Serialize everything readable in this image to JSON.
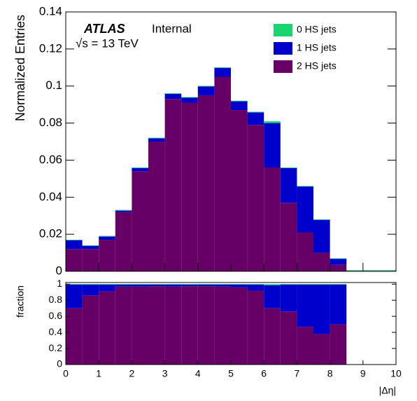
{
  "chart_data": [
    {
      "type": "histogram",
      "ylabel": "Normalized Entries",
      "annotations": [
        "ATLAS",
        "Internal",
        "√s = 13 TeV"
      ],
      "bins": [
        0,
        0.5,
        1,
        1.5,
        2,
        2.5,
        3,
        3.5,
        4,
        4.5,
        5,
        5.5,
        6,
        6.5,
        7,
        7.5,
        8,
        8.5,
        9,
        9.5,
        10
      ],
      "series": [
        {
          "name": "0 HS jets",
          "color": "#19d46f",
          "values": [
            0,
            0,
            0,
            0,
            0,
            0,
            0,
            0,
            0,
            0,
            0,
            0,
            0.001,
            0,
            0,
            0,
            0,
            0,
            0,
            0
          ]
        },
        {
          "name": "1 HS jets",
          "color": "#0000cc",
          "values": [
            0.005,
            0.002,
            0.002,
            0.001,
            0.002,
            0.002,
            0.003,
            0.003,
            0.005,
            0.005,
            0.005,
            0.007,
            0.024,
            0.019,
            0.025,
            0.018,
            0.0035,
            0,
            0,
            0
          ]
        },
        {
          "name": "2 HS jets",
          "color": "#660066",
          "values": [
            0.012,
            0.012,
            0.017,
            0.032,
            0.054,
            0.07,
            0.093,
            0.091,
            0.095,
            0.105,
            0.087,
            0.079,
            0.056,
            0.037,
            0.021,
            0.01,
            0.0035,
            0.0005,
            0.0005,
            0.0005
          ]
        }
      ],
      "stacked": true,
      "xlim": [
        0,
        10
      ],
      "xticks": [
        0,
        1,
        2,
        3,
        4,
        5,
        6,
        7,
        8,
        9,
        10
      ],
      "ylim": [
        0,
        0.14
      ],
      "yticks": [
        0,
        0.02,
        0.04,
        0.06,
        0.08,
        0.1,
        0.12,
        0.14
      ],
      "legend": "upper right"
    },
    {
      "type": "histogram",
      "xlabel": "|Δη|",
      "ylabel": "fraction",
      "bins": [
        0,
        0.5,
        1,
        1.5,
        2,
        2.5,
        3,
        3.5,
        4,
        4.5,
        5,
        5.5,
        6,
        6.5,
        7,
        7.5,
        8,
        8.5,
        9,
        9.5,
        10
      ],
      "series": [
        {
          "name": "0 HS jets",
          "color": "#19d46f",
          "values": [
            0,
            0,
            0,
            0,
            0,
            0,
            0,
            0,
            0,
            0,
            0,
            0,
            0.012,
            0,
            0,
            0,
            0,
            null,
            null,
            null
          ]
        },
        {
          "name": "1 HS jets",
          "color": "#0000cc",
          "values": [
            0.3,
            0.14,
            0.09,
            0.03,
            0.03,
            0.025,
            0.03,
            0.025,
            0.025,
            0.03,
            0.04,
            0.08,
            0.288,
            0.34,
            0.53,
            0.62,
            0.5,
            null,
            null,
            null
          ]
        },
        {
          "name": "2 HS jets",
          "color": "#660066",
          "values": [
            0.7,
            0.86,
            0.91,
            0.97,
            0.97,
            0.975,
            0.97,
            0.975,
            0.975,
            0.97,
            0.96,
            0.92,
            0.7,
            0.66,
            0.47,
            0.38,
            0.5,
            null,
            null,
            null
          ]
        }
      ],
      "stacked": true,
      "xlim": [
        0,
        10
      ],
      "xticks": [
        0,
        1,
        2,
        3,
        4,
        5,
        6,
        7,
        8,
        9,
        10
      ],
      "ylim": [
        0,
        1.02
      ],
      "yticks": [
        0,
        0.2,
        0.4,
        0.6,
        0.8,
        1
      ]
    }
  ]
}
